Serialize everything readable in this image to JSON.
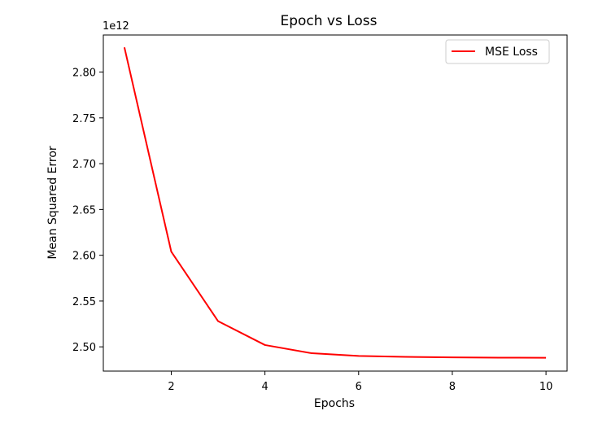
{
  "chart_data": {
    "type": "line",
    "title": "Epoch vs Loss",
    "xlabel": "Epochs",
    "ylabel": "Mean Squared Error",
    "y_offset_label": "1e12",
    "y_scale_factor": 1000000000000.0,
    "xlim": [
      0.55,
      10.45
    ],
    "ylim": [
      2.4735,
      2.8405
    ],
    "x_ticks": [
      2,
      4,
      6,
      8,
      10
    ],
    "y_ticks": [
      2.5,
      2.55,
      2.6,
      2.65,
      2.7,
      2.75,
      2.8
    ],
    "grid": false,
    "legend_position": "top-right",
    "series": [
      {
        "name": "MSE Loss",
        "color": "#ff0000",
        "x": [
          1,
          2,
          3,
          4,
          5,
          6,
          7,
          8,
          9,
          10
        ],
        "y": [
          2.827,
          2.604,
          2.528,
          2.502,
          2.493,
          2.49,
          2.489,
          2.4885,
          2.4882,
          2.4881
        ]
      }
    ]
  }
}
